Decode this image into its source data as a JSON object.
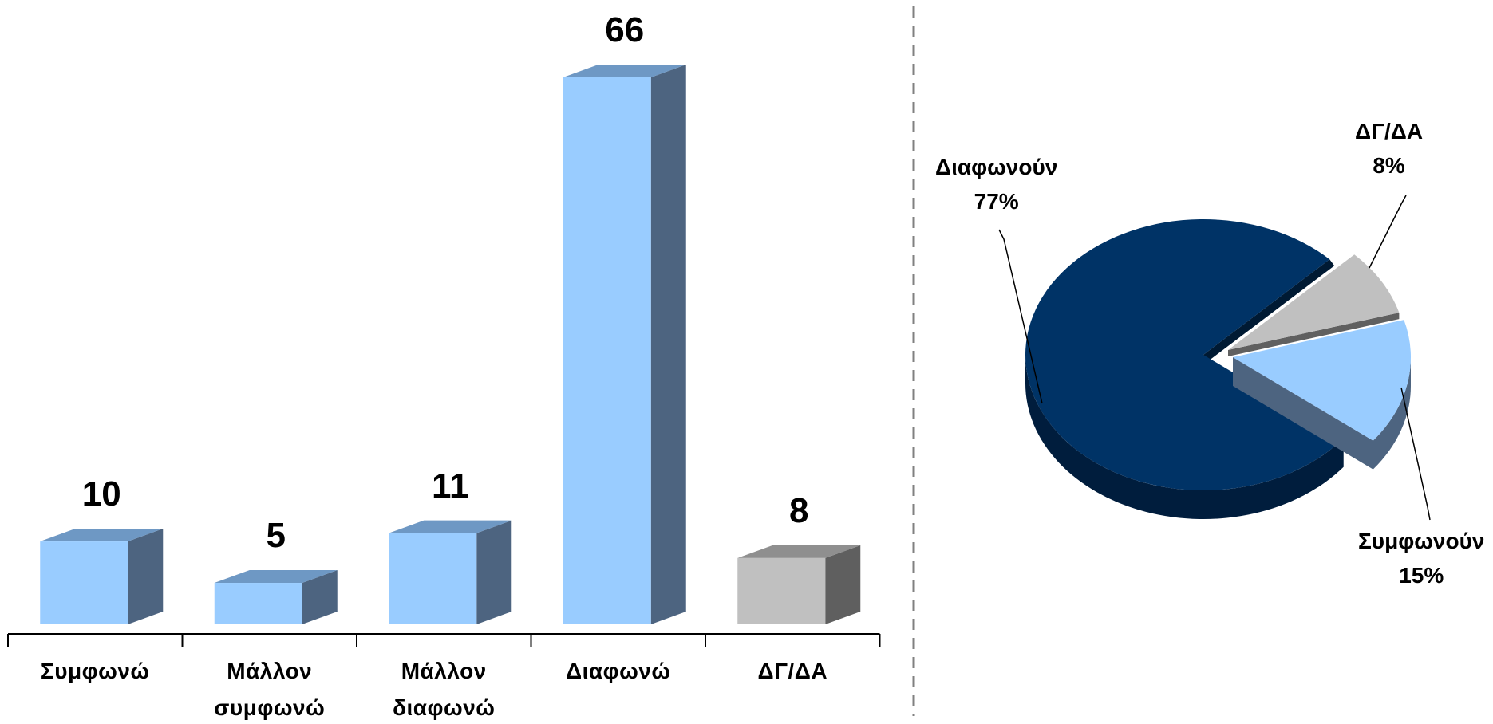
{
  "chart_data": [
    {
      "type": "bar",
      "title": "",
      "xlabel": "",
      "ylabel": "",
      "categories": [
        "Συμφωνώ",
        "Μάλλον συμφωνώ",
        "Μάλλον διαφωνώ",
        "Διαφωνώ",
        "ΔΓ/ΔΑ"
      ],
      "category_lines": [
        [
          "Συμφωνώ"
        ],
        [
          "Μάλλον",
          "συμφωνώ"
        ],
        [
          "Μάλλον",
          "διαφωνώ"
        ],
        [
          "Διαφωνώ"
        ],
        [
          "ΔΓ/ΔΑ"
        ]
      ],
      "values": [
        10,
        5,
        11,
        66,
        8
      ],
      "value_labels": [
        "10",
        "5",
        "11",
        "66",
        "8"
      ],
      "ylim": [
        0,
        66
      ],
      "grid": false,
      "style": "3d-column",
      "bar_colors": [
        "#99ccff",
        "#99ccff",
        "#99ccff",
        "#99ccff",
        "#c0c0c0"
      ]
    },
    {
      "type": "pie",
      "title": "",
      "style": "3d-exploded",
      "slices": [
        {
          "label": "Διαφωνούν",
          "value": 77,
          "value_label": "77%",
          "color": "#003366"
        },
        {
          "label": "ΔΓ/ΔΑ",
          "value": 8,
          "value_label": "8%",
          "color": "#c0c0c0"
        },
        {
          "label": "Συμφωνούν",
          "value": 15,
          "value_label": "15%",
          "color": "#99ccff"
        }
      ]
    }
  ]
}
